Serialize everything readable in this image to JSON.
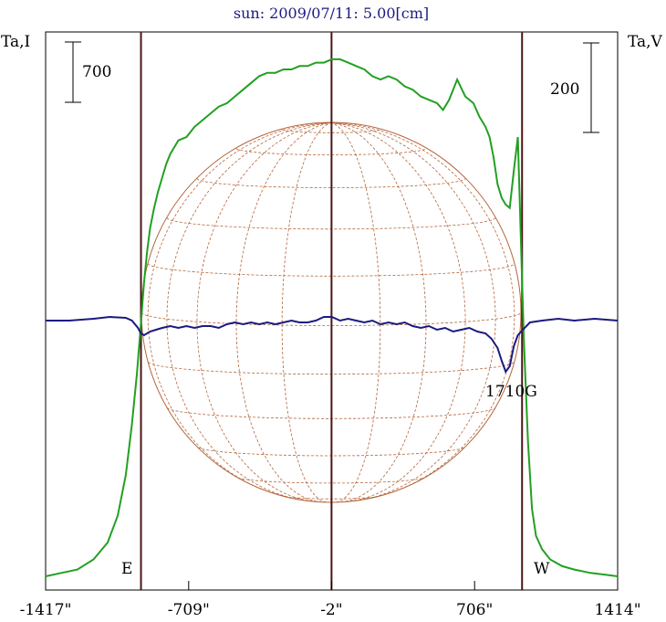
{
  "chart_data": {
    "type": "line",
    "title": "sun: 2009/07/11: 5.00[cm]",
    "left_axis_label": "Ta,I",
    "right_axis_label": "Ta,V",
    "scale_bar_left": "700",
    "scale_bar_right": "200",
    "east_label": "E",
    "west_label": "W",
    "annotation": "1710G",
    "x_tick_labels": [
      "-1417\"",
      "-709\"",
      "-2\"",
      "706\"",
      "1414\""
    ],
    "x_ticks": [
      -1417,
      -709,
      -2,
      706,
      1414
    ],
    "xlim": [
      -1417,
      1414
    ],
    "limb_markers": [
      -945,
      941
    ],
    "center_marker": -2,
    "grid": false,
    "colors": {
      "intensity": "#22a022",
      "polarization": "#1a1a80",
      "markers": "#4a1515",
      "sun_grid": "#b5653a"
    },
    "series": [
      {
        "name": "Ta,I",
        "x": [
          -1417,
          -1340,
          -1260,
          -1180,
          -1110,
          -1060,
          -1020,
          -990,
          -965,
          -945,
          -930,
          -915,
          -900,
          -880,
          -860,
          -840,
          -820,
          -800,
          -780,
          -760,
          -720,
          -680,
          -640,
          -600,
          -560,
          -520,
          -480,
          -440,
          -400,
          -360,
          -320,
          -280,
          -240,
          -200,
          -160,
          -120,
          -80,
          -40,
          0,
          40,
          80,
          120,
          160,
          200,
          240,
          280,
          320,
          360,
          400,
          440,
          480,
          520,
          550,
          580,
          620,
          660,
          700,
          730,
          760,
          780,
          800,
          820,
          840,
          860,
          880,
          900,
          920,
          935,
          950,
          970,
          990,
          1010,
          1040,
          1080,
          1140,
          1200,
          1280,
          1350,
          1414
        ],
        "y": [
          0.0,
          0.01,
          0.02,
          0.05,
          0.1,
          0.18,
          0.3,
          0.45,
          0.6,
          0.75,
          0.87,
          0.96,
          1.03,
          1.09,
          1.14,
          1.18,
          1.22,
          1.25,
          1.27,
          1.29,
          1.3,
          1.33,
          1.35,
          1.37,
          1.39,
          1.4,
          1.42,
          1.44,
          1.46,
          1.48,
          1.49,
          1.49,
          1.5,
          1.5,
          1.51,
          1.51,
          1.52,
          1.52,
          1.53,
          1.53,
          1.52,
          1.51,
          1.5,
          1.48,
          1.47,
          1.48,
          1.47,
          1.45,
          1.44,
          1.42,
          1.41,
          1.4,
          1.38,
          1.41,
          1.47,
          1.42,
          1.4,
          1.36,
          1.33,
          1.3,
          1.24,
          1.16,
          1.12,
          1.1,
          1.09,
          1.2,
          1.3,
          1.0,
          0.7,
          0.4,
          0.2,
          0.12,
          0.08,
          0.05,
          0.03,
          0.02,
          0.01,
          0.005,
          0.0
        ]
      },
      {
        "name": "Ta,V",
        "x": [
          -1417,
          -1300,
          -1180,
          -1100,
          -1020,
          -990,
          -960,
          -945,
          -930,
          -900,
          -870,
          -840,
          -800,
          -760,
          -720,
          -680,
          -640,
          -600,
          -560,
          -520,
          -480,
          -440,
          -400,
          -360,
          -320,
          -280,
          -240,
          -200,
          -160,
          -120,
          -80,
          -40,
          0,
          40,
          80,
          120,
          160,
          200,
          240,
          280,
          320,
          360,
          400,
          440,
          480,
          520,
          560,
          600,
          640,
          680,
          720,
          760,
          790,
          820,
          840,
          860,
          880,
          900,
          920,
          945,
          980,
          1040,
          1120,
          1200,
          1300,
          1414
        ],
        "y": [
          0.0,
          0.0,
          0.01,
          0.02,
          0.015,
          0.0,
          -0.04,
          -0.07,
          -0.08,
          -0.06,
          -0.05,
          -0.04,
          -0.03,
          -0.04,
          -0.03,
          -0.04,
          -0.03,
          -0.03,
          -0.04,
          -0.02,
          -0.01,
          -0.02,
          -0.01,
          -0.02,
          -0.01,
          -0.02,
          -0.01,
          0.0,
          -0.01,
          -0.01,
          0.0,
          0.02,
          0.02,
          0.0,
          0.01,
          0.0,
          -0.01,
          0.0,
          -0.02,
          -0.01,
          -0.02,
          -0.01,
          -0.03,
          -0.04,
          -0.03,
          -0.05,
          -0.04,
          -0.06,
          -0.05,
          -0.04,
          -0.06,
          -0.07,
          -0.1,
          -0.15,
          -0.22,
          -0.28,
          -0.25,
          -0.14,
          -0.08,
          -0.05,
          -0.01,
          0.0,
          0.01,
          0.0,
          0.01,
          0.0
        ]
      }
    ]
  }
}
